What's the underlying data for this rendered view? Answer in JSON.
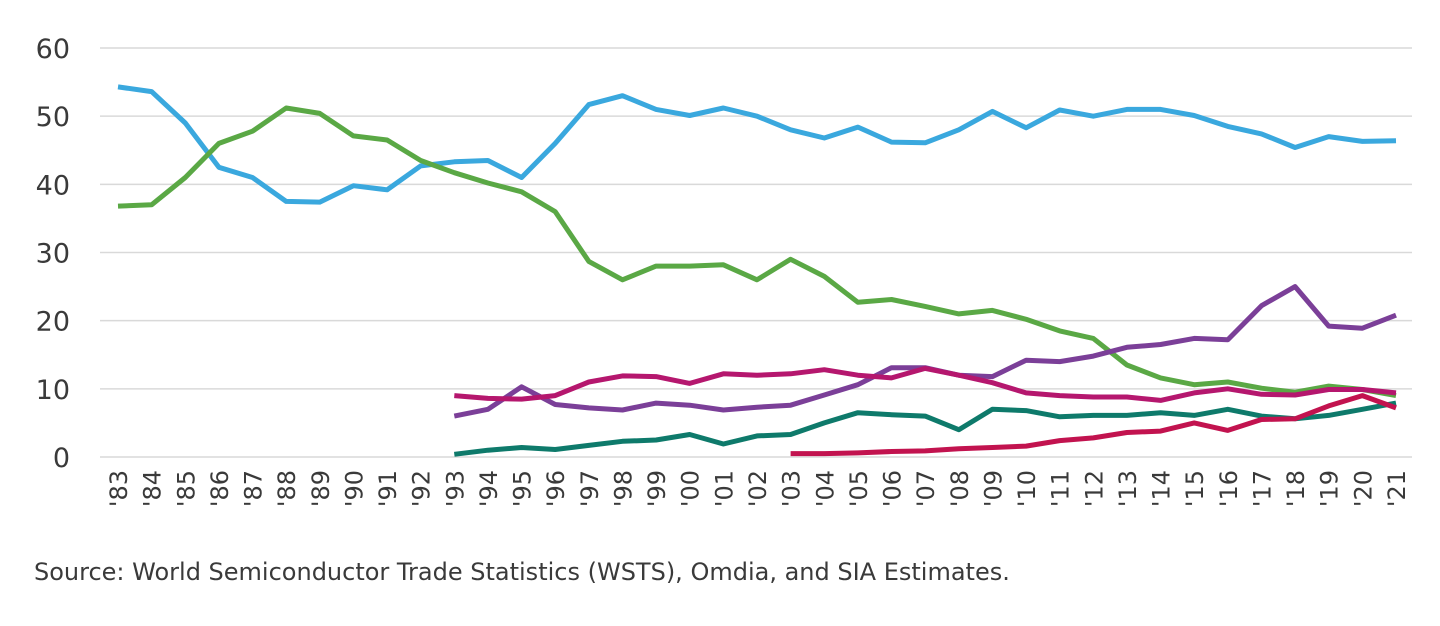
{
  "source_note": "Source: World Semiconductor Trade Statistics (WSTS), Omdia, and SIA Estimates.",
  "colors": {
    "blue": "#3aa8de",
    "green": "#5aa845",
    "purple": "#7b3f98",
    "magenta": "#b5176e",
    "teal": "#0e7a6b",
    "crimson": "#c2134f",
    "grid": "#d9d9d9"
  },
  "chart_data": {
    "type": "line",
    "title": "",
    "xlabel": "",
    "ylabel": "",
    "ylim": [
      0,
      60
    ],
    "yticks": [
      0,
      10,
      20,
      30,
      40,
      50,
      60
    ],
    "grid": "horizontal",
    "categories": [
      "'83",
      "'84",
      "'85",
      "'86",
      "'87",
      "'88",
      "'89",
      "'90",
      "'91",
      "'92",
      "'93",
      "'94",
      "'95",
      "'96",
      "'97",
      "'98",
      "'99",
      "'00",
      "'01",
      "'02",
      "'03",
      "'04",
      "'05",
      "'06",
      "'07",
      "'08",
      "'09",
      "'10",
      "'11",
      "'12",
      "'13",
      "'14",
      "'15",
      "'16",
      "'17",
      "'18",
      "'19",
      "'20",
      "'21"
    ],
    "series": [
      {
        "color": "#3aa8de",
        "values": [
          54.3,
          53.6,
          49,
          42.5,
          41,
          37.5,
          37.4,
          39.8,
          39.2,
          42.7,
          43.3,
          43.5,
          41,
          46,
          51.7,
          53,
          51,
          50.1,
          51.2,
          50,
          48,
          46.8,
          48.4,
          46.2,
          46.1,
          48,
          50.7,
          48.3,
          50.9,
          50,
          51,
          51,
          50.1,
          48.5,
          47.4,
          45.4,
          47,
          46.3,
          46.4
        ]
      },
      {
        "color": "#5aa845",
        "values": [
          36.8,
          37,
          41,
          46,
          47.8,
          51.2,
          50.4,
          47.1,
          46.5,
          43.5,
          41.7,
          40.2,
          38.9,
          36,
          28.7,
          26,
          28,
          28,
          28.2,
          26,
          29,
          26.5,
          22.7,
          23.1,
          22.1,
          21,
          21.5,
          20.2,
          18.5,
          17.4,
          13.5,
          11.6,
          10.6,
          11,
          10.1,
          9.5,
          10.4,
          9.9,
          9
        ]
      },
      {
        "color": "#7b3f98",
        "values": [
          null,
          null,
          null,
          null,
          null,
          null,
          null,
          null,
          null,
          null,
          6,
          7,
          10.3,
          7.7,
          7.2,
          6.9,
          7.9,
          7.6,
          6.9,
          7.3,
          7.6,
          9.1,
          10.6,
          13.1,
          13.1,
          12,
          11.8,
          14.2,
          14,
          14.8,
          16.1,
          16.5,
          17.4,
          17.2,
          22.2,
          25,
          19.2,
          18.9,
          20.8
        ]
      },
      {
        "color": "#b5176e",
        "values": [
          null,
          null,
          null,
          null,
          null,
          null,
          null,
          null,
          null,
          null,
          9,
          8.6,
          8.5,
          9,
          11,
          11.9,
          11.8,
          10.8,
          12.2,
          12,
          12.2,
          12.8,
          12,
          11.6,
          13,
          12,
          10.9,
          9.4,
          9,
          8.8,
          8.8,
          8.3,
          9.4,
          10,
          9.2,
          9.1,
          9.9,
          9.9,
          9.4
        ]
      },
      {
        "color": "#0e7a6b",
        "values": [
          null,
          null,
          null,
          null,
          null,
          null,
          null,
          null,
          null,
          null,
          0.4,
          1,
          1.4,
          1.1,
          1.7,
          2.3,
          2.5,
          3.3,
          1.9,
          3.1,
          3.3,
          5,
          6.5,
          6.2,
          6,
          4,
          7,
          6.8,
          5.9,
          6.1,
          6.1,
          6.5,
          6.1,
          7,
          6,
          5.6,
          6.1,
          7,
          7.9
        ]
      },
      {
        "color": "#c2134f",
        "values": [
          null,
          null,
          null,
          null,
          null,
          null,
          null,
          null,
          null,
          null,
          null,
          null,
          null,
          null,
          null,
          null,
          null,
          null,
          null,
          null,
          0.5,
          0.5,
          0.6,
          0.8,
          0.9,
          1.2,
          1.4,
          1.6,
          2.4,
          2.8,
          3.6,
          3.8,
          5,
          3.9,
          5.5,
          5.6,
          7.5,
          9,
          7.2
        ]
      }
    ]
  }
}
